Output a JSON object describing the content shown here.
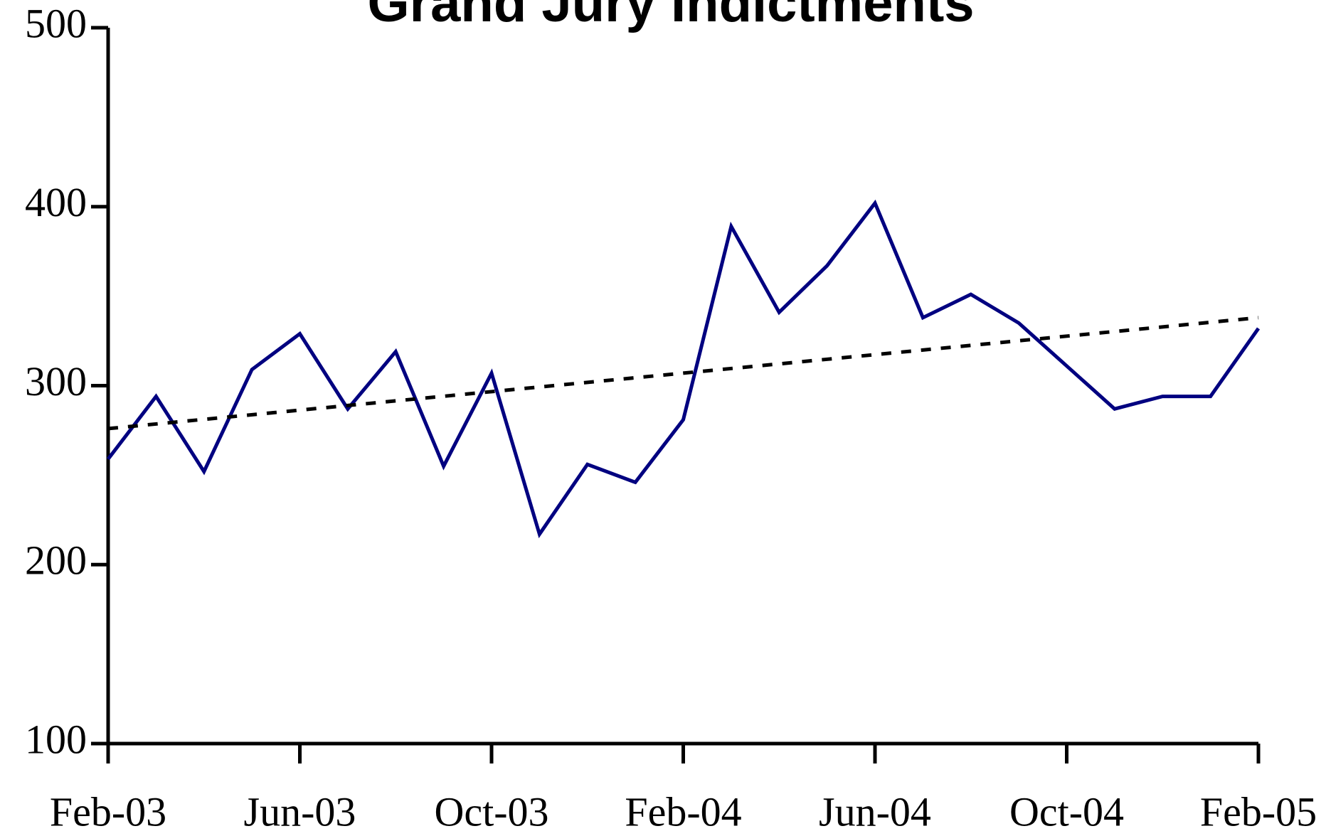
{
  "chart_data": {
    "type": "line",
    "title": "Grand Jury Indictments",
    "categories": [
      "Feb-03",
      null,
      null,
      null,
      "Jun-03",
      null,
      null,
      null,
      "Oct-03",
      null,
      null,
      null,
      "Feb-04",
      null,
      null,
      null,
      "Jun-04",
      null,
      null,
      null,
      "Oct-04",
      null,
      null,
      null,
      "Feb-05"
    ],
    "series": [
      {
        "color": "#000080",
        "values": [
          259,
          294,
          252,
          309,
          329,
          287,
          319,
          255,
          307,
          217,
          256,
          246,
          281,
          389,
          341,
          367,
          402,
          338,
          351,
          335,
          311,
          287,
          294,
          294,
          332
        ]
      }
    ],
    "trendline": {
      "color": "#000000",
      "values": [
        276,
        338
      ]
    },
    "ylim": [
      100,
      500
    ],
    "yticks": [
      100,
      200,
      300,
      400,
      500
    ],
    "grid": false
  }
}
